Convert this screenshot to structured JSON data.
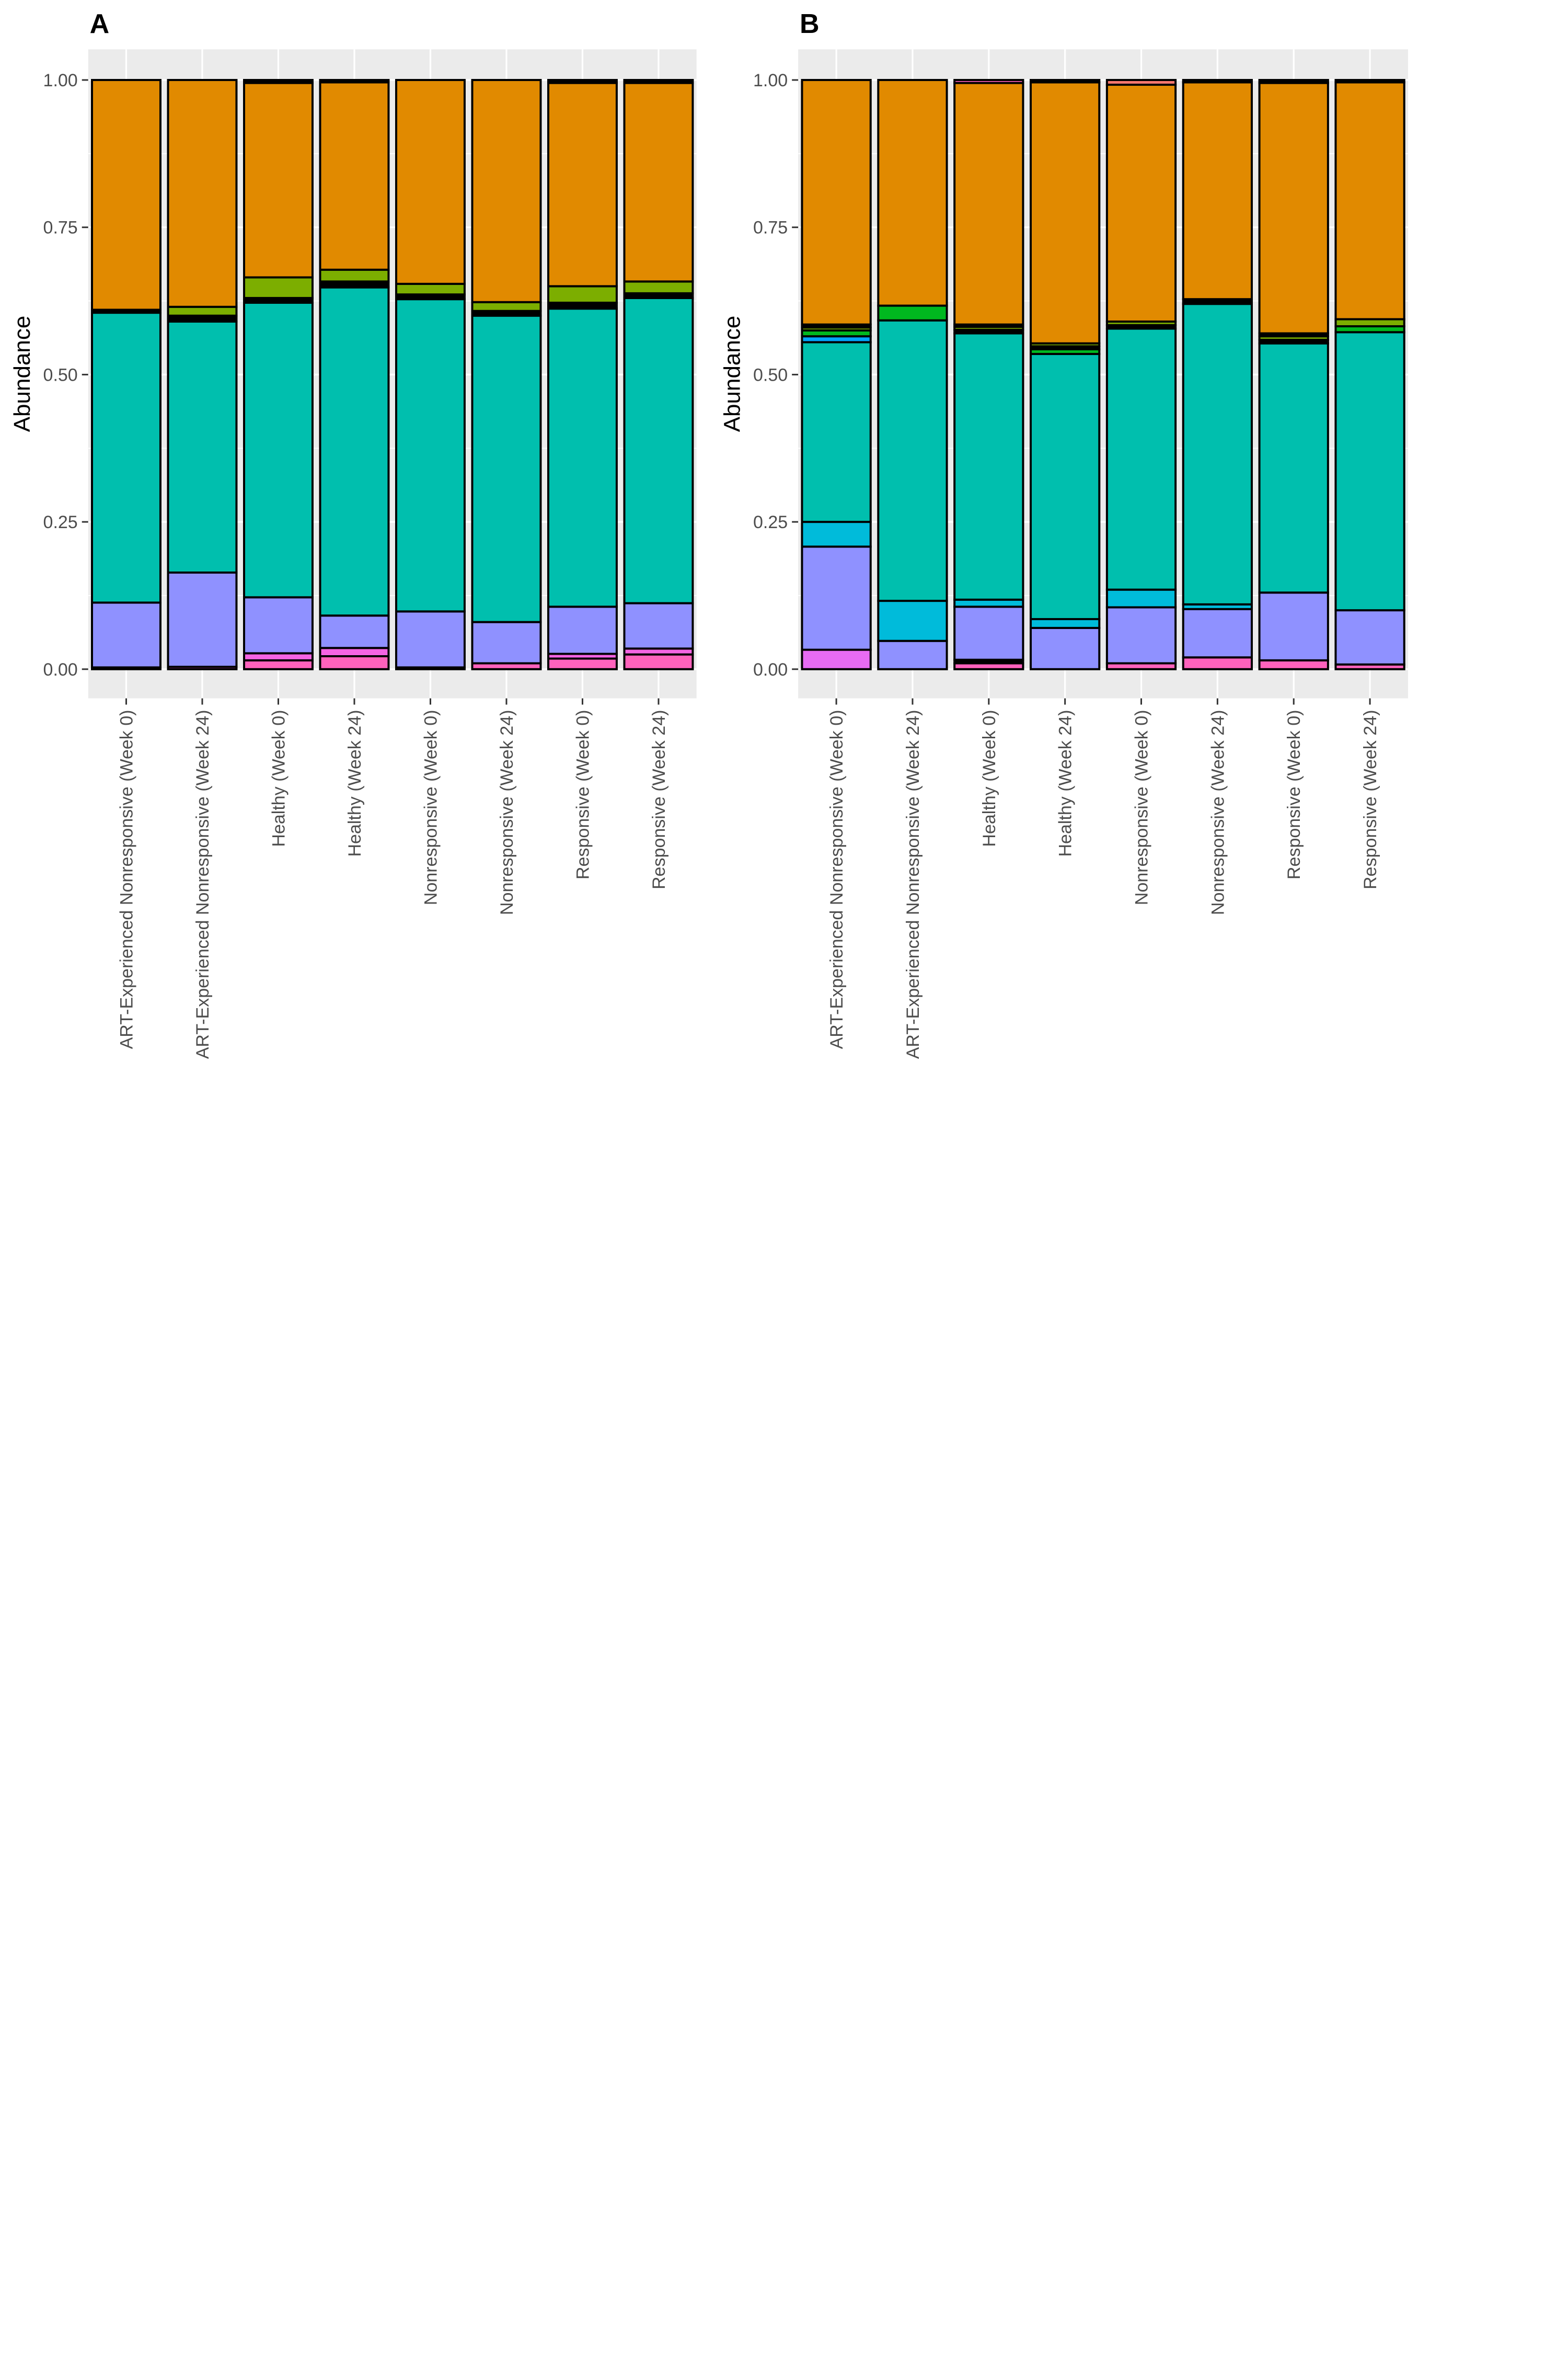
{
  "chart_data": [
    {
      "type": "bar",
      "stacked": true,
      "panel_label": "A",
      "ylabel": "Abundance",
      "xlabel": "",
      "ylim": [
        0,
        1
      ],
      "yticks": [
        "0.00",
        "0.25",
        "0.50",
        "0.75",
        "1.00"
      ],
      "grid": true,
      "legend": "none",
      "categories": [
        "ART-Experienced Nonresponsive (Week 0)",
        "ART-Experienced Nonresponsive (Week 24)",
        "Healthy (Week 0)",
        "Healthy (Week 24)",
        "Nonresponsive (Week 0)",
        "Nonresponsive (Week 24)",
        "Responsive (Week 0)",
        "Responsive (Week 24)"
      ],
      "segments": [
        [
          {
            "color": "#F564E3",
            "value": 0.003
          },
          {
            "color": "#8F91FF",
            "value": 0.11
          },
          {
            "color": "#00BFAE",
            "value": 0.492
          },
          {
            "color": "#000000",
            "value": 0.005
          },
          {
            "color": "#E18A00",
            "value": 0.39
          }
        ],
        [
          {
            "color": "#F564E3",
            "value": 0.004
          },
          {
            "color": "#8F91FF",
            "value": 0.16
          },
          {
            "color": "#00BFAE",
            "value": 0.426
          },
          {
            "color": "#000000",
            "value": 0.01
          },
          {
            "color": "#7CAE00",
            "value": 0.015
          },
          {
            "color": "#E18A00",
            "value": 0.385
          }
        ],
        [
          {
            "color": "#FF62BC",
            "value": 0.015
          },
          {
            "color": "#F564E3",
            "value": 0.012
          },
          {
            "color": "#8F91FF",
            "value": 0.095
          },
          {
            "color": "#00BFAE",
            "value": 0.5
          },
          {
            "color": "#000000",
            "value": 0.008
          },
          {
            "color": "#7CAE00",
            "value": 0.035
          },
          {
            "color": "#E18A00",
            "value": 0.33
          },
          {
            "color": "#000000",
            "value": 0.005
          }
        ],
        [
          {
            "color": "#FF62BC",
            "value": 0.022
          },
          {
            "color": "#F564E3",
            "value": 0.014
          },
          {
            "color": "#8F91FF",
            "value": 0.055
          },
          {
            "color": "#00BFAE",
            "value": 0.557
          },
          {
            "color": "#000000",
            "value": 0.01
          },
          {
            "color": "#7CAE00",
            "value": 0.02
          },
          {
            "color": "#E18A00",
            "value": 0.318
          },
          {
            "color": "#000000",
            "value": 0.004
          }
        ],
        [
          {
            "color": "#F564E3",
            "value": 0.003
          },
          {
            "color": "#8F91FF",
            "value": 0.095
          },
          {
            "color": "#00BFAE",
            "value": 0.53
          },
          {
            "color": "#000000",
            "value": 0.008
          },
          {
            "color": "#7CAE00",
            "value": 0.018
          },
          {
            "color": "#E18A00",
            "value": 0.346
          }
        ],
        [
          {
            "color": "#FF62BC",
            "value": 0.01
          },
          {
            "color": "#8F91FF",
            "value": 0.07
          },
          {
            "color": "#00BFAE",
            "value": 0.52
          },
          {
            "color": "#000000",
            "value": 0.008
          },
          {
            "color": "#7CAE00",
            "value": 0.015
          },
          {
            "color": "#E18A00",
            "value": 0.377
          }
        ],
        [
          {
            "color": "#FF62BC",
            "value": 0.018
          },
          {
            "color": "#F564E3",
            "value": 0.008
          },
          {
            "color": "#8F91FF",
            "value": 0.08
          },
          {
            "color": "#00BFAE",
            "value": 0.506
          },
          {
            "color": "#000000",
            "value": 0.01
          },
          {
            "color": "#7CAE00",
            "value": 0.028
          },
          {
            "color": "#E18A00",
            "value": 0.345
          },
          {
            "color": "#000000",
            "value": 0.005
          }
        ],
        [
          {
            "color": "#FF62BC",
            "value": 0.025
          },
          {
            "color": "#F564E3",
            "value": 0.01
          },
          {
            "color": "#8F91FF",
            "value": 0.077
          },
          {
            "color": "#00BFAE",
            "value": 0.518
          },
          {
            "color": "#000000",
            "value": 0.008
          },
          {
            "color": "#7CAE00",
            "value": 0.02
          },
          {
            "color": "#E18A00",
            "value": 0.337
          },
          {
            "color": "#000000",
            "value": 0.005
          }
        ]
      ]
    },
    {
      "type": "bar",
      "stacked": true,
      "panel_label": "B",
      "ylabel": "Abundance",
      "xlabel": "",
      "ylim": [
        0,
        1
      ],
      "yticks": [
        "0.00",
        "0.25",
        "0.50",
        "0.75",
        "1.00"
      ],
      "grid": true,
      "legend": "none",
      "categories": [
        "ART-Experienced Nonresponsive (Week 0)",
        "ART-Experienced Nonresponsive (Week 24)",
        "Healthy (Week 0)",
        "Healthy (Week 24)",
        "Nonresponsive (Week 0)",
        "Nonresponsive (Week 24)",
        "Responsive (Week 0)",
        "Responsive (Week 24)"
      ],
      "segments": [
        [
          {
            "color": "#E76BF3",
            "value": 0.033
          },
          {
            "color": "#8F91FF",
            "value": 0.175
          },
          {
            "color": "#00BBDA",
            "value": 0.042
          },
          {
            "color": "#00BFAE",
            "value": 0.305
          },
          {
            "color": "#00A5FF",
            "value": 0.01
          },
          {
            "color": "#00B81F",
            "value": 0.01
          },
          {
            "color": "#7CAE00",
            "value": 0.005
          },
          {
            "color": "#000000",
            "value": 0.005
          },
          {
            "color": "#E18A00",
            "value": 0.415
          }
        ],
        [
          {
            "color": "#8F91FF",
            "value": 0.048
          },
          {
            "color": "#00BBDA",
            "value": 0.068
          },
          {
            "color": "#00BFAE",
            "value": 0.476
          },
          {
            "color": "#00B81F",
            "value": 0.025
          },
          {
            "color": "#E18A00",
            "value": 0.383
          }
        ],
        [
          {
            "color": "#FF62BC",
            "value": 0.01
          },
          {
            "color": "#000000",
            "value": 0.006
          },
          {
            "color": "#8F91FF",
            "value": 0.09
          },
          {
            "color": "#00BBDA",
            "value": 0.012
          },
          {
            "color": "#00BFAE",
            "value": 0.452
          },
          {
            "color": "#000000",
            "value": 0.006
          },
          {
            "color": "#7CAE00",
            "value": 0.005
          },
          {
            "color": "#000000",
            "value": 0.004
          },
          {
            "color": "#E18A00",
            "value": 0.41
          },
          {
            "color": "#FF62BC",
            "value": 0.005
          }
        ],
        [
          {
            "color": "#8F91FF",
            "value": 0.07
          },
          {
            "color": "#00BBDA",
            "value": 0.015
          },
          {
            "color": "#00BFAE",
            "value": 0.45
          },
          {
            "color": "#00B81F",
            "value": 0.008
          },
          {
            "color": "#000000",
            "value": 0.005
          },
          {
            "color": "#7CAE00",
            "value": 0.005
          },
          {
            "color": "#E18A00",
            "value": 0.443
          },
          {
            "color": "#000000",
            "value": 0.004
          }
        ],
        [
          {
            "color": "#FF62BC",
            "value": 0.01
          },
          {
            "color": "#8F91FF",
            "value": 0.095
          },
          {
            "color": "#00BBDA",
            "value": 0.03
          },
          {
            "color": "#00BFAE",
            "value": 0.443
          },
          {
            "color": "#000000",
            "value": 0.006
          },
          {
            "color": "#7CAE00",
            "value": 0.006
          },
          {
            "color": "#E18A00",
            "value": 0.402
          },
          {
            "color": "#F8766D",
            "value": 0.008
          }
        ],
        [
          {
            "color": "#FF62BC",
            "value": 0.02
          },
          {
            "color": "#8F91FF",
            "value": 0.082
          },
          {
            "color": "#00BBDA",
            "value": 0.008
          },
          {
            "color": "#00BFAE",
            "value": 0.51
          },
          {
            "color": "#000000",
            "value": 0.008
          },
          {
            "color": "#E18A00",
            "value": 0.368
          },
          {
            "color": "#000000",
            "value": 0.004
          }
        ],
        [
          {
            "color": "#FF62BC",
            "value": 0.015
          },
          {
            "color": "#8F91FF",
            "value": 0.115
          },
          {
            "color": "#00BFAE",
            "value": 0.423
          },
          {
            "color": "#000000",
            "value": 0.006
          },
          {
            "color": "#7CAE00",
            "value": 0.006
          },
          {
            "color": "#000000",
            "value": 0.005
          },
          {
            "color": "#E18A00",
            "value": 0.425
          },
          {
            "color": "#000000",
            "value": 0.005
          }
        ],
        [
          {
            "color": "#FF62BC",
            "value": 0.008
          },
          {
            "color": "#8F91FF",
            "value": 0.092
          },
          {
            "color": "#00BFAE",
            "value": 0.472
          },
          {
            "color": "#00B81F",
            "value": 0.01
          },
          {
            "color": "#7CAE00",
            "value": 0.012
          },
          {
            "color": "#E18A00",
            "value": 0.402
          },
          {
            "color": "#000000",
            "value": 0.004
          }
        ]
      ]
    }
  ]
}
